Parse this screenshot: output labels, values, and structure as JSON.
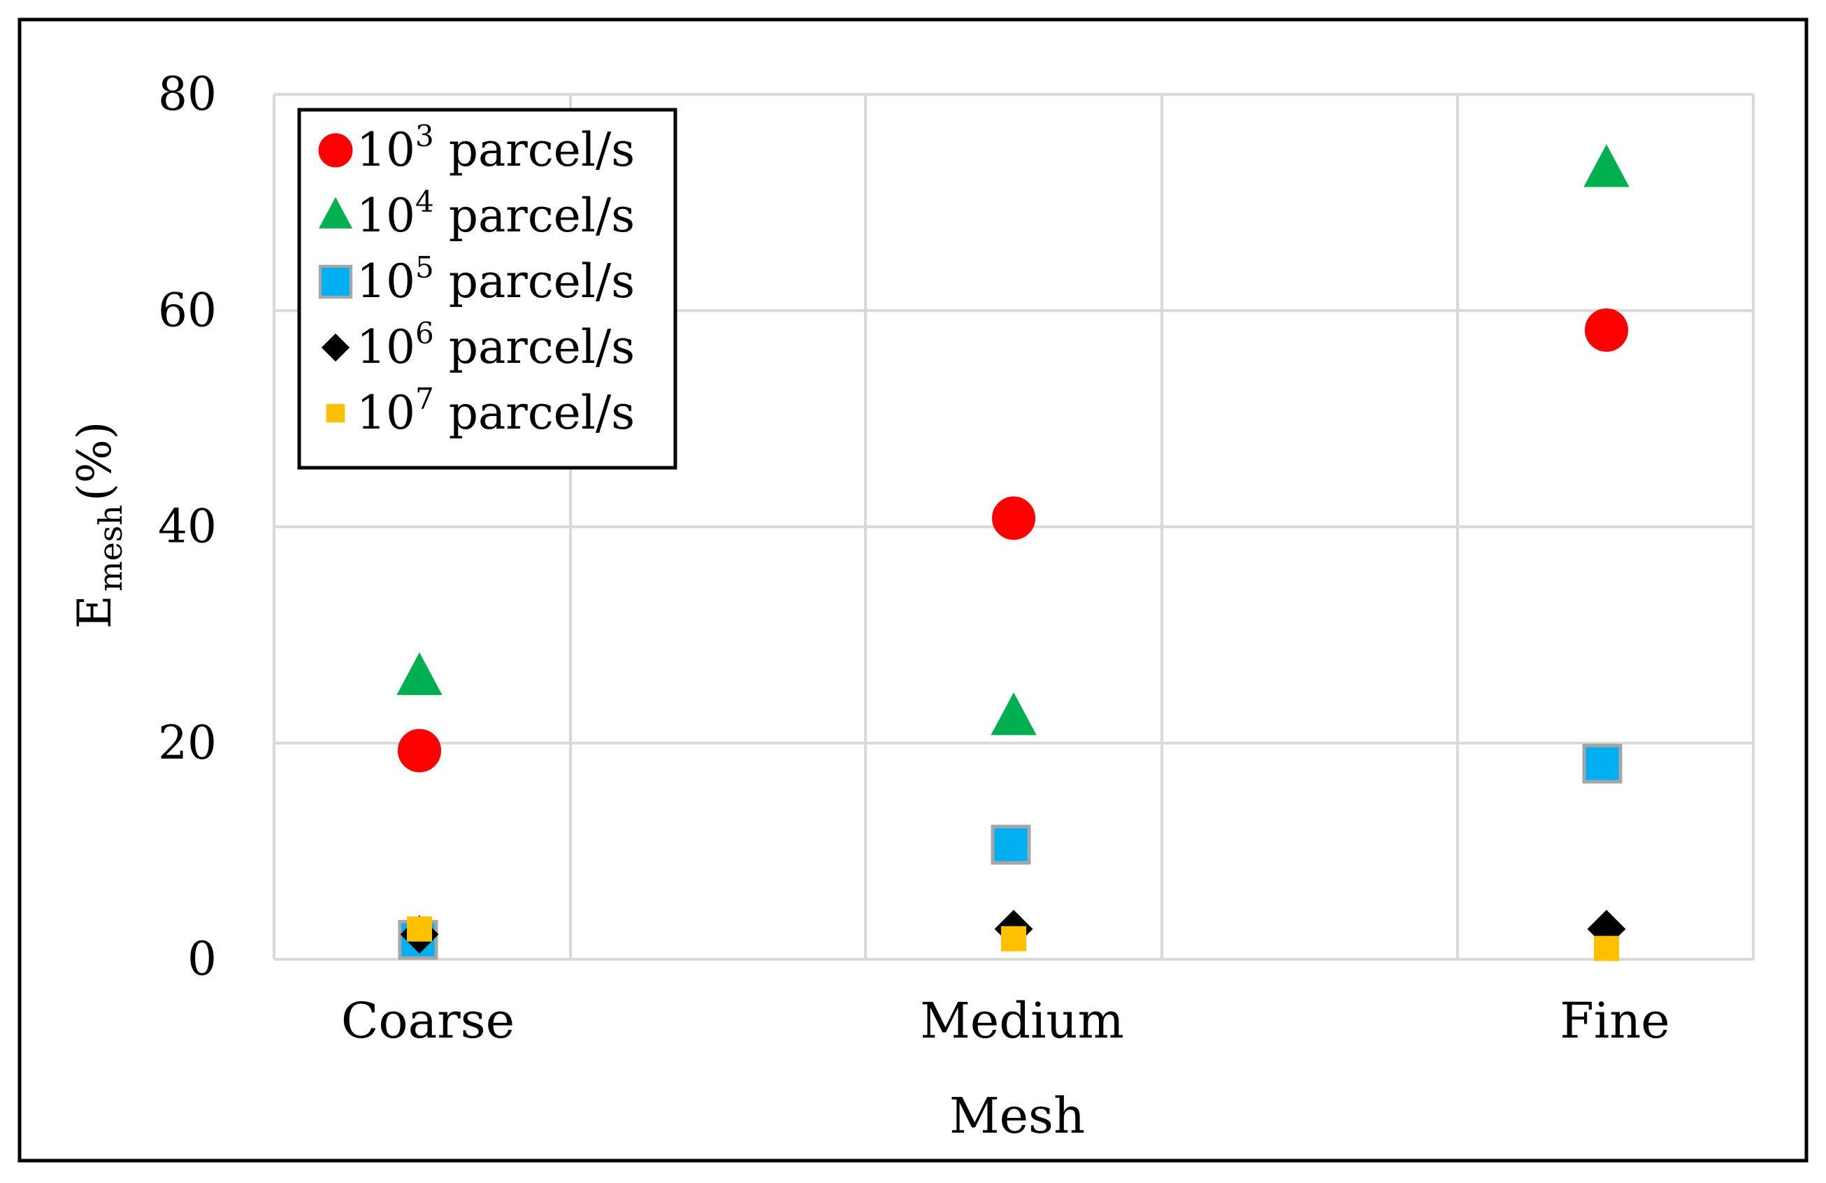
{
  "chart_data": {
    "type": "scatter",
    "title": "",
    "xlabel": "Mesh",
    "ylabel": {
      "main": "E",
      "subscript": "mesh",
      "suffix": " (%)"
    },
    "categories": [
      "Coarse",
      "Medium",
      "Fine"
    ],
    "ylim": [
      0,
      80
    ],
    "yticks": [
      "0",
      "20",
      "40",
      "60",
      "80"
    ],
    "grid": true,
    "legend_position": "top-left",
    "series": [
      {
        "name": "10³ parcel/s",
        "base": "10",
        "exponent": "3",
        "unit": " parcel/s",
        "marker": "circle",
        "color": "#ff0000",
        "stroke": "#ff0000",
        "values": [
          19.3,
          40.8,
          58.2
        ]
      },
      {
        "name": "10⁴ parcel/s",
        "base": "10",
        "exponent": "4",
        "unit": " parcel/s",
        "marker": "triangle",
        "color": "#00b050",
        "stroke": "#00b050",
        "values": [
          26.0,
          22.3,
          73.0
        ]
      },
      {
        "name": "10⁵ parcel/s",
        "base": "10",
        "exponent": "5",
        "unit": " parcel/s",
        "marker": "square",
        "color": "#00b0f0",
        "stroke": "#a6a6a6",
        "values": [
          1.8,
          10.6,
          18.1
        ]
      },
      {
        "name": "10⁶ parcel/s",
        "base": "10",
        "exponent": "6",
        "unit": " parcel/s",
        "marker": "diamond",
        "color": "#000000",
        "stroke": "#000000",
        "values": [
          2.3,
          2.8,
          2.8
        ]
      },
      {
        "name": "10⁷ parcel/s",
        "base": "10",
        "exponent": "7",
        "unit": " parcel/s",
        "marker": "small-square",
        "color": "#ffc000",
        "stroke": "#ffc000",
        "values": [
          2.8,
          1.9,
          1.0
        ]
      }
    ]
  }
}
